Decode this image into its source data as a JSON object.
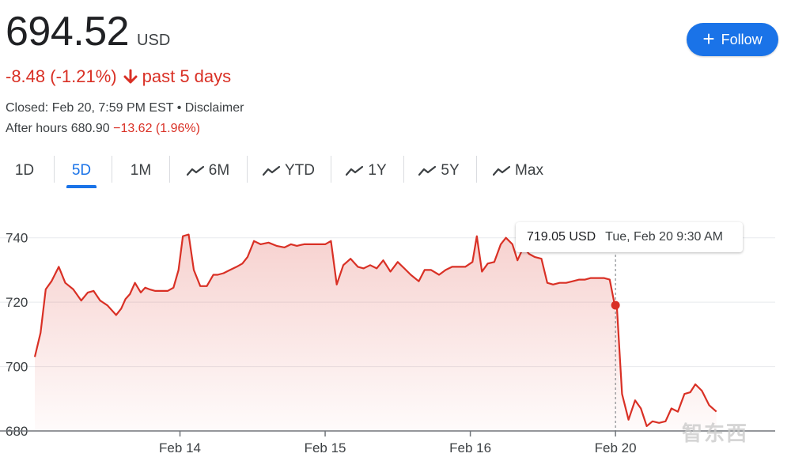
{
  "quote": {
    "price": "694.52",
    "currency": "USD",
    "change": "-8.48 (-1.21%)",
    "period": "past 5 days",
    "closed_text": "Closed: Feb 20, 7:59 PM EST",
    "disclaimer": "Disclaimer",
    "after_hours_label": "After hours 680.90",
    "after_hours_change": "−13.62 (1.96%)"
  },
  "follow_button": {
    "label": "Follow",
    "icon": "plus-icon",
    "color": "#1a73e8"
  },
  "tabs": [
    {
      "label": "1D",
      "icon": null,
      "active": false
    },
    {
      "label": "5D",
      "icon": null,
      "active": true
    },
    {
      "label": "1M",
      "icon": null,
      "active": false
    },
    {
      "label": "6M",
      "icon": "trend-line-icon",
      "active": false
    },
    {
      "label": "YTD",
      "icon": "trend-line-icon",
      "active": false
    },
    {
      "label": "1Y",
      "icon": "trend-line-icon",
      "active": false
    },
    {
      "label": "5Y",
      "icon": "trend-line-icon",
      "active": false
    },
    {
      "label": "Max",
      "icon": "trend-line-icon",
      "active": false
    }
  ],
  "tooltip": {
    "price": "719.05 USD",
    "datetime": "Tue, Feb 20 9:30 AM"
  },
  "watermark": "智东西",
  "chart_data": {
    "type": "area",
    "title": "",
    "xlabel": "",
    "ylabel": "",
    "ylim": [
      680,
      750
    ],
    "xlim": [
      0,
      102
    ],
    "yticks": [
      680,
      700,
      720,
      740
    ],
    "xticks": [
      {
        "label": "Feb 14",
        "x": 20
      },
      {
        "label": "Feb 15",
        "x": 40
      },
      {
        "label": "Feb 16",
        "x": 60
      },
      {
        "label": "Feb 20",
        "x": 80
      }
    ],
    "grid": true,
    "line_color": "#d93025",
    "highlight": {
      "x": 80,
      "y": 719.05
    },
    "series": [
      {
        "x": [
          0,
          0.8,
          1.5,
          2.3,
          3.3,
          4.2,
          5.3,
          6.4,
          7.3,
          8.1,
          9.0,
          10.0,
          11.2,
          11.9,
          12.5,
          13.1,
          13.8,
          14.6,
          15.2,
          15.8,
          16.6,
          17.5,
          18.3,
          19.1,
          19.8,
          20.4,
          21.2,
          21.9,
          22.8,
          23.7,
          24.6,
          25.2,
          26.0,
          26.9,
          27.8,
          28.6,
          29.3,
          30.2,
          31.1,
          32.2,
          33.3,
          34.4,
          35.3,
          36.1,
          37.1,
          38.1,
          39.2,
          40.0,
          40.8,
          41.6,
          42.5,
          43.5,
          44.5,
          45.3,
          46.2,
          47.1,
          48.0,
          49.0,
          50.0,
          50.9,
          51.8,
          52.9,
          53.7,
          54.6,
          55.7,
          56.6,
          57.5,
          58.4,
          59.3,
          60.3,
          60.9,
          61.6,
          62.4,
          63.3,
          64.2,
          64.9,
          65.8,
          66.5,
          67.3,
          68.1,
          68.9,
          69.8,
          70.6,
          71.4,
          72.3,
          73.2,
          74.1,
          75.0,
          75.8,
          76.6,
          77.5,
          78.4,
          79.2,
          79.9,
          80.2,
          80.9,
          81.8,
          82.7,
          83.5,
          84.3,
          85.1,
          86.0,
          86.9,
          87.7,
          88.6,
          89.5,
          90.3,
          91.0,
          91.9,
          92.9,
          93.9
        ],
        "y": [
          703,
          710.5,
          724,
          726.5,
          731,
          726,
          724,
          720.5,
          723,
          723.5,
          720.5,
          719,
          716,
          718,
          721,
          722.5,
          726,
          723,
          724.5,
          724,
          723.5,
          723.5,
          723.5,
          724.5,
          730,
          740.5,
          741,
          730,
          725,
          725,
          728.5,
          728.5,
          729,
          730,
          731,
          732,
          734,
          739,
          738,
          738.5,
          737.5,
          737,
          738,
          737.5,
          738,
          738,
          738,
          738,
          739,
          725.5,
          731.5,
          733.5,
          731,
          730.5,
          731.5,
          730.5,
          733,
          729.5,
          732.5,
          730.5,
          728.5,
          726.5,
          730,
          730,
          728.5,
          730,
          731,
          731,
          731,
          732.5,
          740.5,
          729.5,
          732,
          732.5,
          738,
          740,
          738,
          733,
          737,
          735,
          734,
          733.5,
          726,
          725.5,
          726,
          726,
          726.5,
          727,
          727,
          727.5,
          727.5,
          727.5,
          727,
          719.05,
          718,
          691.5,
          683.5,
          689.5,
          687,
          681.5,
          683,
          682.5,
          683,
          687,
          686,
          691.5,
          692,
          694.5,
          692.5,
          688,
          686
        ]
      }
    ]
  }
}
